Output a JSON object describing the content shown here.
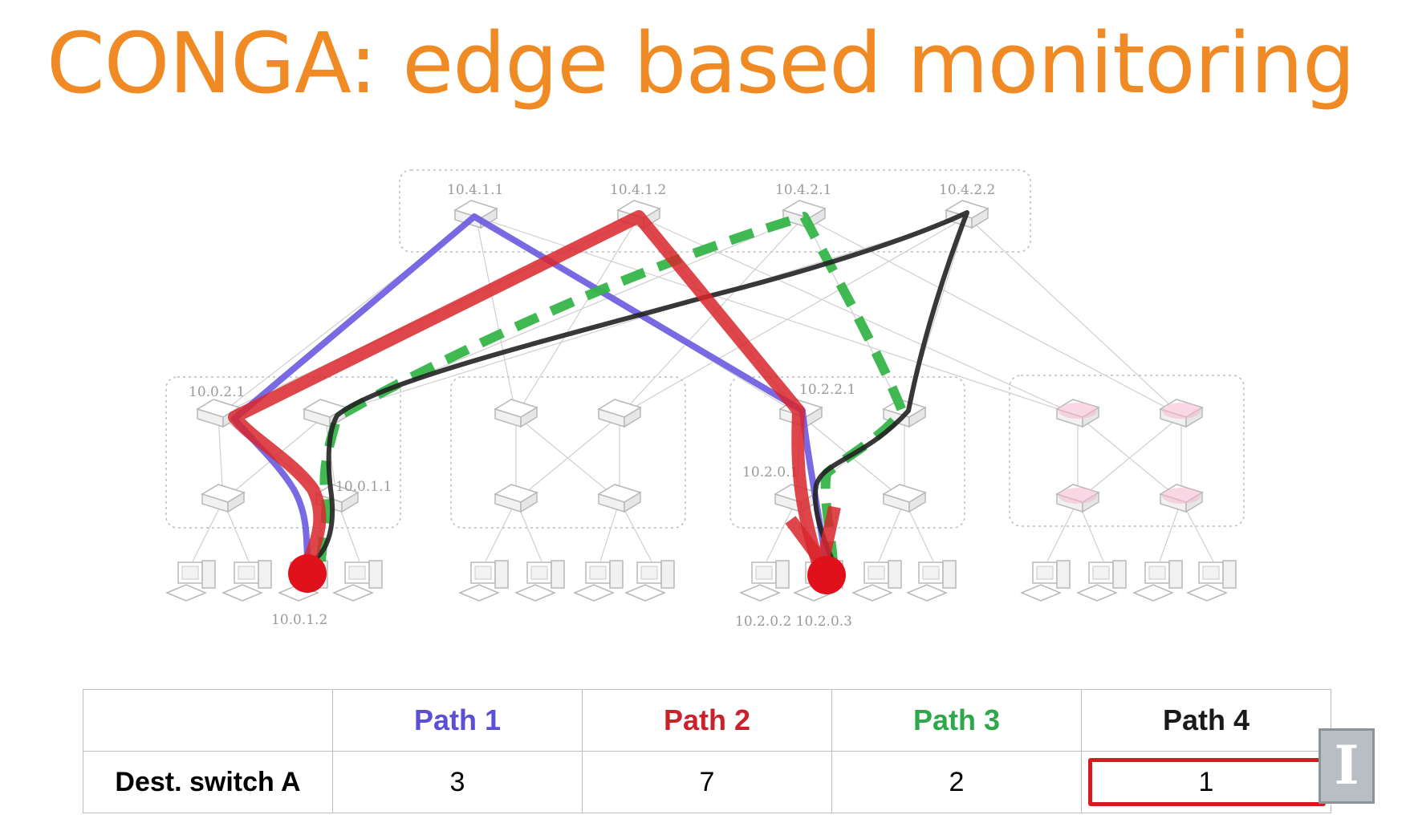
{
  "title": "CONGA: edge based monitoring",
  "colors": {
    "title": "#F08A24",
    "path1": "#6A5AE0",
    "path2": "#D8262C",
    "path3": "#36B54A",
    "path4": "#222222",
    "highlight": "#D71920"
  },
  "topology_labels": {
    "spine1": "10.4.1.1",
    "spine2": "10.4.1.2",
    "spine3": "10.4.2.1",
    "spine4": "10.4.2.2",
    "agg_a": "10.0.2.1",
    "edge_a": "10.0.1.1",
    "host_src": "10.0.1.2",
    "agg_b": "10.2.2.1",
    "edge_b": "10.2.0.1",
    "host_dst": "10.2.0.2 10.2.0.3"
  },
  "table": {
    "headers": [
      "",
      "Path 1",
      "Path 2",
      "Path 3",
      "Path 4"
    ],
    "row": {
      "label": "Dest. switch A",
      "values": [
        "3",
        "7",
        "2",
        "1"
      ],
      "highlighted_index": 3
    }
  },
  "logo_icon": "university-i-logo-icon"
}
